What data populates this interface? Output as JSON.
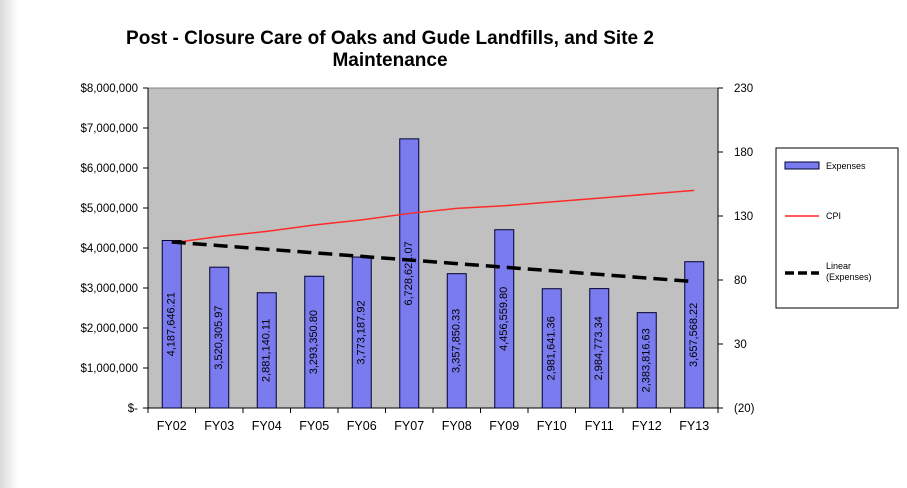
{
  "chart_data": {
    "type": "bar",
    "title": "Post - Closure Care of Oaks and Gude Landfills, and Site 2 Maintenance",
    "categories": [
      "FY02",
      "FY03",
      "FY04",
      "FY05",
      "FY06",
      "FY07",
      "FY08",
      "FY09",
      "FY10",
      "FY11",
      "FY12",
      "FY13"
    ],
    "y_left": {
      "ylim": [
        0,
        8000000
      ],
      "ticks": [
        0,
        1000000,
        2000000,
        3000000,
        4000000,
        5000000,
        6000000,
        7000000,
        8000000
      ],
      "tick_labels": [
        "$-",
        "$1,000,000",
        "$2,000,000",
        "$3,000,000",
        "$4,000,000",
        "$5,000,000",
        "$6,000,000",
        "$7,000,000",
        "$8,000,000"
      ]
    },
    "y_right": {
      "ylim": [
        -20,
        230
      ],
      "ticks": [
        -20,
        30,
        80,
        130,
        180,
        230
      ],
      "tick_labels": [
        "(20)",
        "30",
        "80",
        "130",
        "180",
        "230"
      ]
    },
    "series": [
      {
        "name": "Expenses",
        "kind": "bar",
        "axis": "left",
        "color": "#7b7bf0",
        "values": [
          4187646.21,
          3520305.97,
          2881140.11,
          3293350.8,
          3773187.92,
          6728621.07,
          3357850.33,
          4456559.8,
          2981641.36,
          2984773.34,
          2383816.63,
          3657568.22
        ],
        "data_labels": [
          "4,187,646.21",
          "3,520,305.97",
          "2,881,140.11",
          "3,293,350.80",
          "3,773,187.92",
          "6,728,621.07",
          "3,357,850.33",
          "4,456,559.80",
          "2,981,641.36",
          "2,984,773.34",
          "2,383,816.63",
          "3,657,568.22"
        ]
      },
      {
        "name": "CPI",
        "kind": "line",
        "axis": "right",
        "color": "#ff2a2a",
        "values": [
          109,
          114,
          118,
          123,
          127,
          132,
          136,
          138,
          141,
          144,
          147,
          150
        ]
      },
      {
        "name": "Linear (Expenses)",
        "kind": "trendline",
        "axis": "left",
        "color": "#000000",
        "dash": true,
        "values": [
          4150000,
          4060000,
          3970000,
          3880000,
          3790000,
          3700000,
          3610000,
          3520000,
          3430000,
          3340000,
          3250000,
          3160000
        ]
      }
    ],
    "legend": {
      "placement": "right",
      "entries": [
        "Expenses",
        "CPI",
        "Linear (Expenses)"
      ]
    },
    "grid": false,
    "plot_background": "#c0c0c0"
  }
}
